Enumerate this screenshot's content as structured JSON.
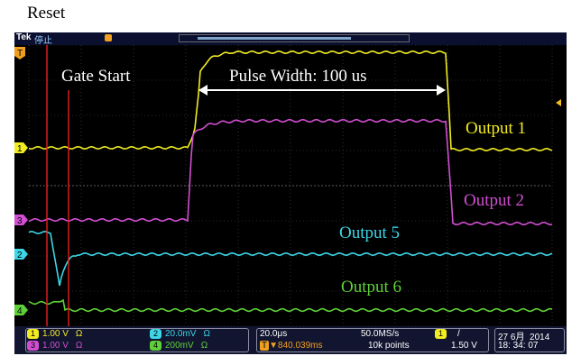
{
  "caption": {
    "reset_label": "Reset"
  },
  "scope": {
    "brand": "Tek",
    "run_state": "停止",
    "colors": {
      "ch1": "#f2ec22",
      "ch2": "#3cd6e6",
      "ch3": "#d14fd1",
      "ch4": "#5fd03a",
      "grid": "#505050",
      "marker": "#e82020",
      "annotation": "#ffffff"
    }
  },
  "annotations": {
    "gate_start": "Gate Start",
    "pulse_width": "Pulse Width: 100 us",
    "output1": "Output 1",
    "output2": "Output 2",
    "output5": "Output 5",
    "output6": "Output 6"
  },
  "channel_markers": {
    "trigger": "T",
    "ch1": "1",
    "ch2": "2",
    "ch3": "3",
    "ch4": "4"
  },
  "status_bar": {
    "ch1": {
      "num": "1",
      "scale": "1.00 V",
      "ohm": "Ω"
    },
    "ch3": {
      "num": "3",
      "scale": "1.00 V",
      "ohm": "Ω"
    },
    "ch2": {
      "num": "2",
      "scale": "20.0mV",
      "ohm": "Ω"
    },
    "ch4": {
      "num": "4",
      "scale": "200mV",
      "ohm": "Ω"
    },
    "timebase": {
      "scale": "20.0μs",
      "position": "▼840.039ms",
      "sample_rate": "50.0MS/s",
      "record_length": "10k points"
    },
    "trigger": {
      "source": "1",
      "slope": "/",
      "level": "1.50 V"
    },
    "datetime": {
      "date": "27 6月",
      "year": "2014",
      "time": "18: 34: 07"
    }
  }
}
